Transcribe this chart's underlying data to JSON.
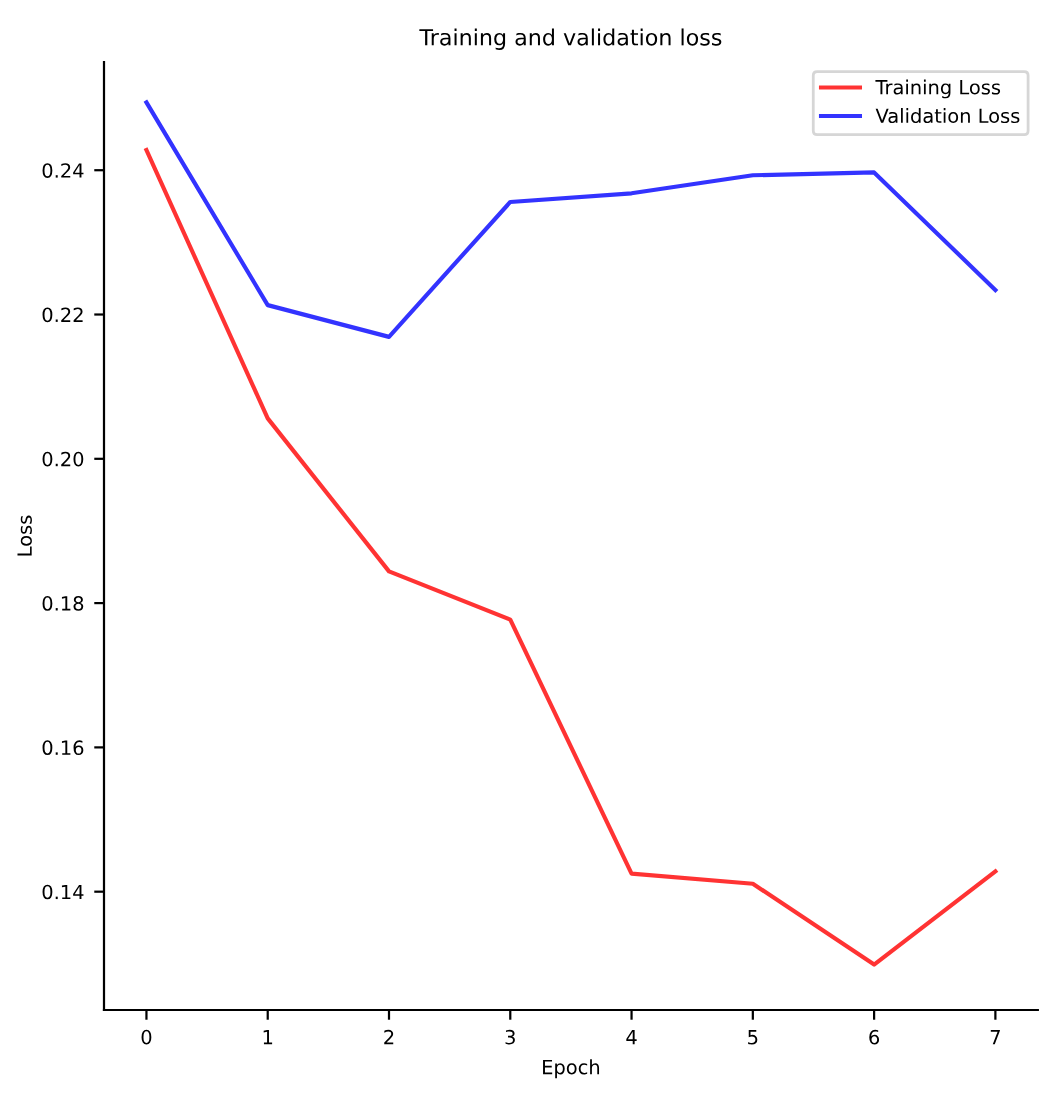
{
  "chart_data": {
    "type": "line",
    "title": "Training and validation loss",
    "xlabel": "Epoch",
    "ylabel": "Loss",
    "x": [
      0,
      1,
      2,
      3,
      4,
      5,
      6,
      7
    ],
    "series": [
      {
        "name": "Training Loss",
        "color": "#ff0000",
        "values": [
          0.2428,
          0.2056,
          0.1844,
          0.1777,
          0.1425,
          0.1411,
          0.1299,
          0.1428
        ]
      },
      {
        "name": "Validation Loss",
        "color": "#0000ff",
        "values": [
          0.2494,
          0.2213,
          0.2169,
          0.2356,
          0.2368,
          0.2393,
          0.2397,
          0.2234
        ]
      }
    ],
    "xlim": [
      -0.35,
      7.35
    ],
    "ylim": [
      0.1236,
      0.255
    ],
    "xticks": [
      0,
      1,
      2,
      3,
      4,
      5,
      6,
      7
    ],
    "yticks": [
      0.14,
      0.16,
      0.18,
      {
        "value": 0.2,
        "label": "0.20"
      },
      0.22,
      0.24
    ],
    "legend": "top right",
    "grid": false,
    "marker": "none",
    "line_style": "solid"
  }
}
